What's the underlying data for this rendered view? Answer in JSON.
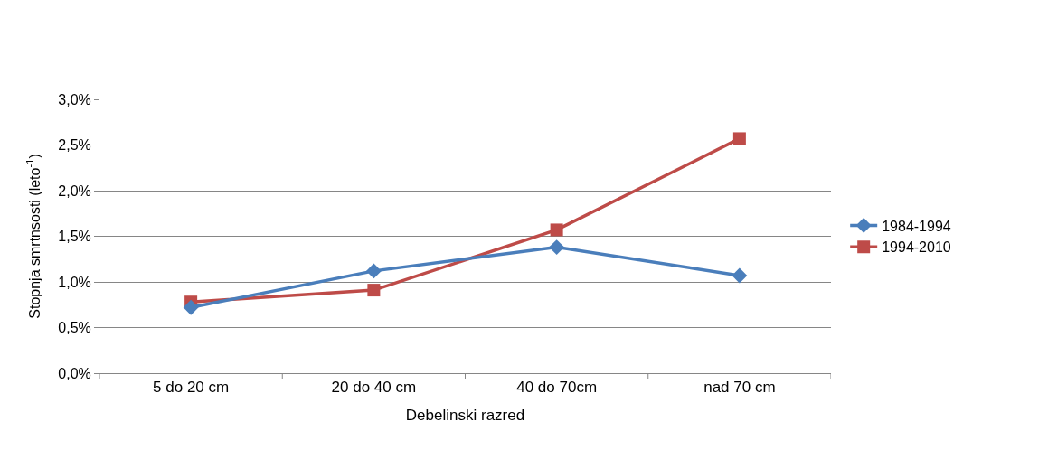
{
  "chart_data": {
    "type": "line",
    "xlabel": "Debelinski razred",
    "ylabel": "Stopnja smrtnsosti (leto$^{-1}$)",
    "categories": [
      "5 do 20 cm",
      "20 do 40 cm",
      "40 do 70cm",
      "nad 70 cm"
    ],
    "series": [
      {
        "name": "1984-1994",
        "color": "#4a7ebb",
        "marker": "diamond",
        "values": [
          0.72,
          1.12,
          1.38,
          1.07
        ]
      },
      {
        "name": "1994-2010",
        "color": "#be4b48",
        "marker": "square",
        "values": [
          0.78,
          0.91,
          1.57,
          2.57
        ]
      }
    ],
    "ylim": [
      0,
      3
    ],
    "yticks": [
      {
        "value": 0,
        "label": "0,0%"
      },
      {
        "value": 0.5,
        "label": "0,5%"
      },
      {
        "value": 1,
        "label": "1,0%"
      },
      {
        "value": 1.5,
        "label": "1,5%"
      },
      {
        "value": 2,
        "label": "2,0%"
      },
      {
        "value": 2.5,
        "label": "2,5%"
      },
      {
        "value": 3,
        "label": "3,0%"
      }
    ],
    "grid": "y",
    "legend": "right",
    "line_style": "solid"
  }
}
